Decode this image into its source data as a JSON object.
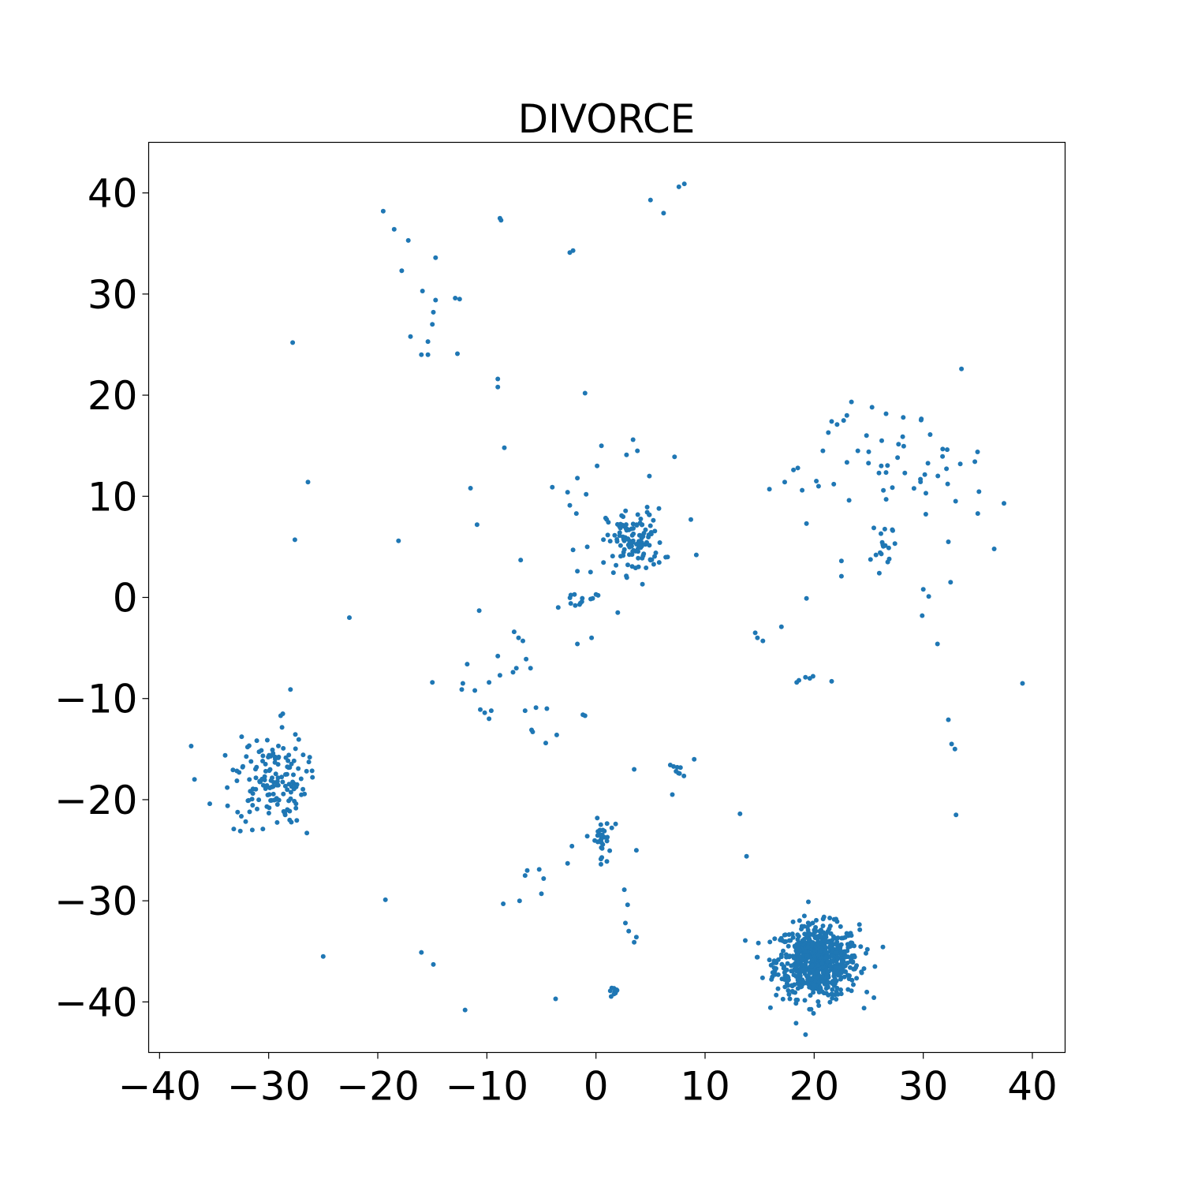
{
  "chart_data": {
    "type": "scatter",
    "title": "DIVORCE",
    "xlabel": "",
    "ylabel": "",
    "xlim": [
      -41,
      43
    ],
    "ylim": [
      -45,
      45
    ],
    "grid": false,
    "point_color": "#1f77b4",
    "xticks": [
      -40,
      -30,
      -20,
      -10,
      0,
      10,
      20,
      30,
      40
    ],
    "yticks": [
      -40,
      -30,
      -20,
      -10,
      0,
      10,
      20,
      30,
      40
    ],
    "xtick_labels": [
      "−40",
      "−30",
      "−20",
      "−10",
      "0",
      "10",
      "20",
      "30",
      "40"
    ],
    "ytick_labels": [
      "−40",
      "−30",
      "−20",
      "−10",
      "0",
      "10",
      "20",
      "30",
      "40"
    ],
    "clusters": [
      {
        "cx": 20.3,
        "cy": -36.0,
        "sx": 1.9,
        "sy": 1.8,
        "n": 700
      },
      {
        "cx": -29.8,
        "cy": -18.0,
        "sx": 1.6,
        "sy": 2.2,
        "n": 140
      },
      {
        "cx": 3.6,
        "cy": 5.5,
        "sx": 1.3,
        "sy": 1.6,
        "n": 120
      },
      {
        "cx": 0.4,
        "cy": -24.0,
        "sx": 0.4,
        "sy": 1.0,
        "n": 30
      },
      {
        "cx": 29.0,
        "cy": 13.5,
        "sx": 3.5,
        "sy": 2.6,
        "n": 40
      },
      {
        "cx": 26.5,
        "cy": 4.5,
        "sx": 0.6,
        "sy": 1.5,
        "n": 16
      },
      {
        "cx": 1.8,
        "cy": -38.9,
        "sx": 0.3,
        "sy": 0.2,
        "n": 10
      },
      {
        "cx": 7.5,
        "cy": -17.2,
        "sx": 0.5,
        "sy": 0.3,
        "n": 8
      },
      {
        "cx": -1.2,
        "cy": -0.3,
        "sx": 0.8,
        "sy": 0.4,
        "n": 9
      }
    ],
    "points": [
      [
        -19.5,
        38.2
      ],
      [
        -18.5,
        36.4
      ],
      [
        -17.2,
        35.3
      ],
      [
        -14.7,
        33.6
      ],
      [
        -17.8,
        32.3
      ],
      [
        -15.9,
        30.3
      ],
      [
        -14.7,
        29.4
      ],
      [
        -12.9,
        29.6
      ],
      [
        -12.5,
        29.5
      ],
      [
        -14.9,
        28.2
      ],
      [
        -15.0,
        27.0
      ],
      [
        -17.0,
        25.8
      ],
      [
        -15.4,
        25.3
      ],
      [
        -27.8,
        25.2
      ],
      [
        -16.0,
        24.0
      ],
      [
        -15.4,
        24.0
      ],
      [
        -12.7,
        24.1
      ],
      [
        -8.8,
        37.5
      ],
      [
        -8.7,
        37.3
      ],
      [
        -2.4,
        34.1
      ],
      [
        -2.1,
        34.3
      ],
      [
        5.0,
        39.3
      ],
      [
        6.2,
        38.0
      ],
      [
        7.6,
        40.6
      ],
      [
        8.1,
        40.9
      ],
      [
        -9.0,
        21.6
      ],
      [
        -9.0,
        20.8
      ],
      [
        -1.0,
        20.2
      ],
      [
        -8.4,
        14.8
      ],
      [
        33.5,
        22.6
      ],
      [
        -26.4,
        11.4
      ],
      [
        -11.5,
        10.8
      ],
      [
        -27.6,
        5.7
      ],
      [
        -18.1,
        5.6
      ],
      [
        -10.9,
        7.2
      ],
      [
        -6.9,
        3.7
      ],
      [
        7.2,
        13.9
      ],
      [
        8.7,
        7.7
      ],
      [
        9.2,
        4.2
      ],
      [
        -4.0,
        10.9
      ],
      [
        -1.7,
        11.8
      ],
      [
        -0.9,
        10.2
      ],
      [
        0.1,
        13.0
      ],
      [
        0.5,
        15.0
      ],
      [
        -1.8,
        8.3
      ],
      [
        -0.8,
        5.0
      ],
      [
        -1.7,
        2.6
      ],
      [
        -0.5,
        2.5
      ],
      [
        -2.1,
        4.7
      ],
      [
        2.8,
        14.1
      ],
      [
        3.4,
        15.6
      ],
      [
        3.8,
        14.5
      ],
      [
        4.9,
        12.0
      ],
      [
        -2.6,
        10.4
      ],
      [
        -2.4,
        9.1
      ],
      [
        -22.6,
        -2.0
      ],
      [
        -10.7,
        -1.3
      ],
      [
        -15.0,
        -8.4
      ],
      [
        -11.8,
        -6.6
      ],
      [
        -12.2,
        -8.5
      ],
      [
        -12.3,
        -9.1
      ],
      [
        -11.1,
        -9.2
      ],
      [
        -9.8,
        -8.4
      ],
      [
        -10.6,
        -11.1
      ],
      [
        -10.2,
        -11.4
      ],
      [
        -9.6,
        -11.2
      ],
      [
        -9.8,
        -12.0
      ],
      [
        -9.0,
        -5.8
      ],
      [
        -8.8,
        -7.7
      ],
      [
        -7.5,
        -3.4
      ],
      [
        -7.1,
        -4.0
      ],
      [
        -6.7,
        -4.3
      ],
      [
        -6.4,
        -6.1
      ],
      [
        -6.0,
        -7.0
      ],
      [
        -7.6,
        -7.4
      ],
      [
        -7.3,
        -7.0
      ],
      [
        -6.5,
        -11.2
      ],
      [
        -5.9,
        -13.1
      ],
      [
        -5.8,
        -13.3
      ],
      [
        -5.5,
        -10.9
      ],
      [
        -4.5,
        -11.0
      ],
      [
        -4.6,
        -14.4
      ],
      [
        -3.6,
        -13.6
      ],
      [
        -1.2,
        -11.6
      ],
      [
        -0.4,
        -4.0
      ],
      [
        -1.7,
        -4.6
      ],
      [
        2.0,
        -1.5
      ],
      [
        -1.9,
        -0.8
      ],
      [
        -1.5,
        -0.7
      ],
      [
        9.0,
        -16.0
      ],
      [
        3.5,
        -17.0
      ],
      [
        7.0,
        -19.5
      ],
      [
        -19.3,
        -29.9
      ],
      [
        -25.0,
        -35.5
      ],
      [
        -16.0,
        -35.1
      ],
      [
        -14.9,
        -36.3
      ],
      [
        -12.0,
        -40.8
      ],
      [
        -8.5,
        -30.3
      ],
      [
        -7.0,
        -30.0
      ],
      [
        -6.3,
        -27.0
      ],
      [
        -6.5,
        -27.5
      ],
      [
        -5.2,
        -26.9
      ],
      [
        -5.0,
        -29.3
      ],
      [
        -4.8,
        -27.8
      ],
      [
        -3.7,
        -39.7
      ],
      [
        -2.6,
        -26.3
      ],
      [
        -2.2,
        -24.6
      ],
      [
        1.8,
        -22.4
      ],
      [
        1.0,
        -26.1
      ],
      [
        3.7,
        -25.0
      ],
      [
        2.6,
        -28.9
      ],
      [
        2.9,
        -30.4
      ],
      [
        2.7,
        -32.2
      ],
      [
        3.0,
        -33.0
      ],
      [
        3.7,
        -33.6
      ],
      [
        3.5,
        -34.1
      ],
      [
        13.2,
        -21.4
      ],
      [
        13.8,
        -25.6
      ],
      [
        14.6,
        -3.5
      ],
      [
        14.8,
        -4.0
      ],
      [
        15.3,
        -4.3
      ],
      [
        17.0,
        -2.9
      ],
      [
        18.4,
        -8.4
      ],
      [
        18.6,
        -8.2
      ],
      [
        19.2,
        -7.9
      ],
      [
        19.6,
        -8.0
      ],
      [
        19.9,
        -7.8
      ],
      [
        21.6,
        -8.3
      ],
      [
        19.3,
        -0.1
      ],
      [
        30.0,
        0.8
      ],
      [
        30.5,
        0.1
      ],
      [
        29.9,
        -1.8
      ],
      [
        31.3,
        -4.6
      ],
      [
        32.5,
        1.5
      ],
      [
        32.3,
        5.5
      ],
      [
        32.3,
        -12.1
      ],
      [
        32.6,
        -14.5
      ],
      [
        32.9,
        -15.0
      ],
      [
        33.0,
        -21.5
      ],
      [
        39.1,
        -8.5
      ],
      [
        35.0,
        8.3
      ],
      [
        37.4,
        9.3
      ],
      [
        36.5,
        4.8
      ],
      [
        22.5,
        3.6
      ],
      [
        22.5,
        2.1
      ],
      [
        23.2,
        9.6
      ],
      [
        19.3,
        7.3
      ],
      [
        20.2,
        11.5
      ],
      [
        20.4,
        11.0
      ],
      [
        21.8,
        11.2
      ],
      [
        15.9,
        10.7
      ],
      [
        17.3,
        11.4
      ],
      [
        18.1,
        12.6
      ],
      [
        18.5,
        12.8
      ],
      [
        18.9,
        10.6
      ],
      [
        20.8,
        14.5
      ],
      [
        21.3,
        16.3
      ],
      [
        21.6,
        17.4
      ],
      [
        22.1,
        17.1
      ],
      [
        22.7,
        17.5
      ],
      [
        23.0,
        18.0
      ],
      [
        24.0,
        14.5
      ],
      [
        24.8,
        16.0
      ],
      [
        25.0,
        14.4
      ],
      [
        25.3,
        18.8
      ],
      [
        26.6,
        9.7
      ],
      [
        -37.1,
        -14.7
      ],
      [
        -36.8,
        -18.0
      ],
      [
        -35.4,
        -20.4
      ],
      [
        -33.8,
        -18.8
      ],
      [
        -33.2,
        -22.9
      ],
      [
        -32.6,
        -23.1
      ],
      [
        -31.9,
        -20.1
      ],
      [
        -31.5,
        -23.0
      ],
      [
        -28.0,
        -9.1
      ],
      [
        -28.7,
        -11.5
      ],
      [
        -28.9,
        -11.7
      ],
      [
        -26.5,
        -23.3
      ],
      [
        -27.9,
        -18.7
      ],
      [
        -27.4,
        -18.5
      ],
      [
        -1.0,
        -11.7
      ],
      [
        0.0,
        0.3
      ],
      [
        -0.3,
        -0.1
      ],
      [
        0.2,
        0.2
      ]
    ]
  }
}
